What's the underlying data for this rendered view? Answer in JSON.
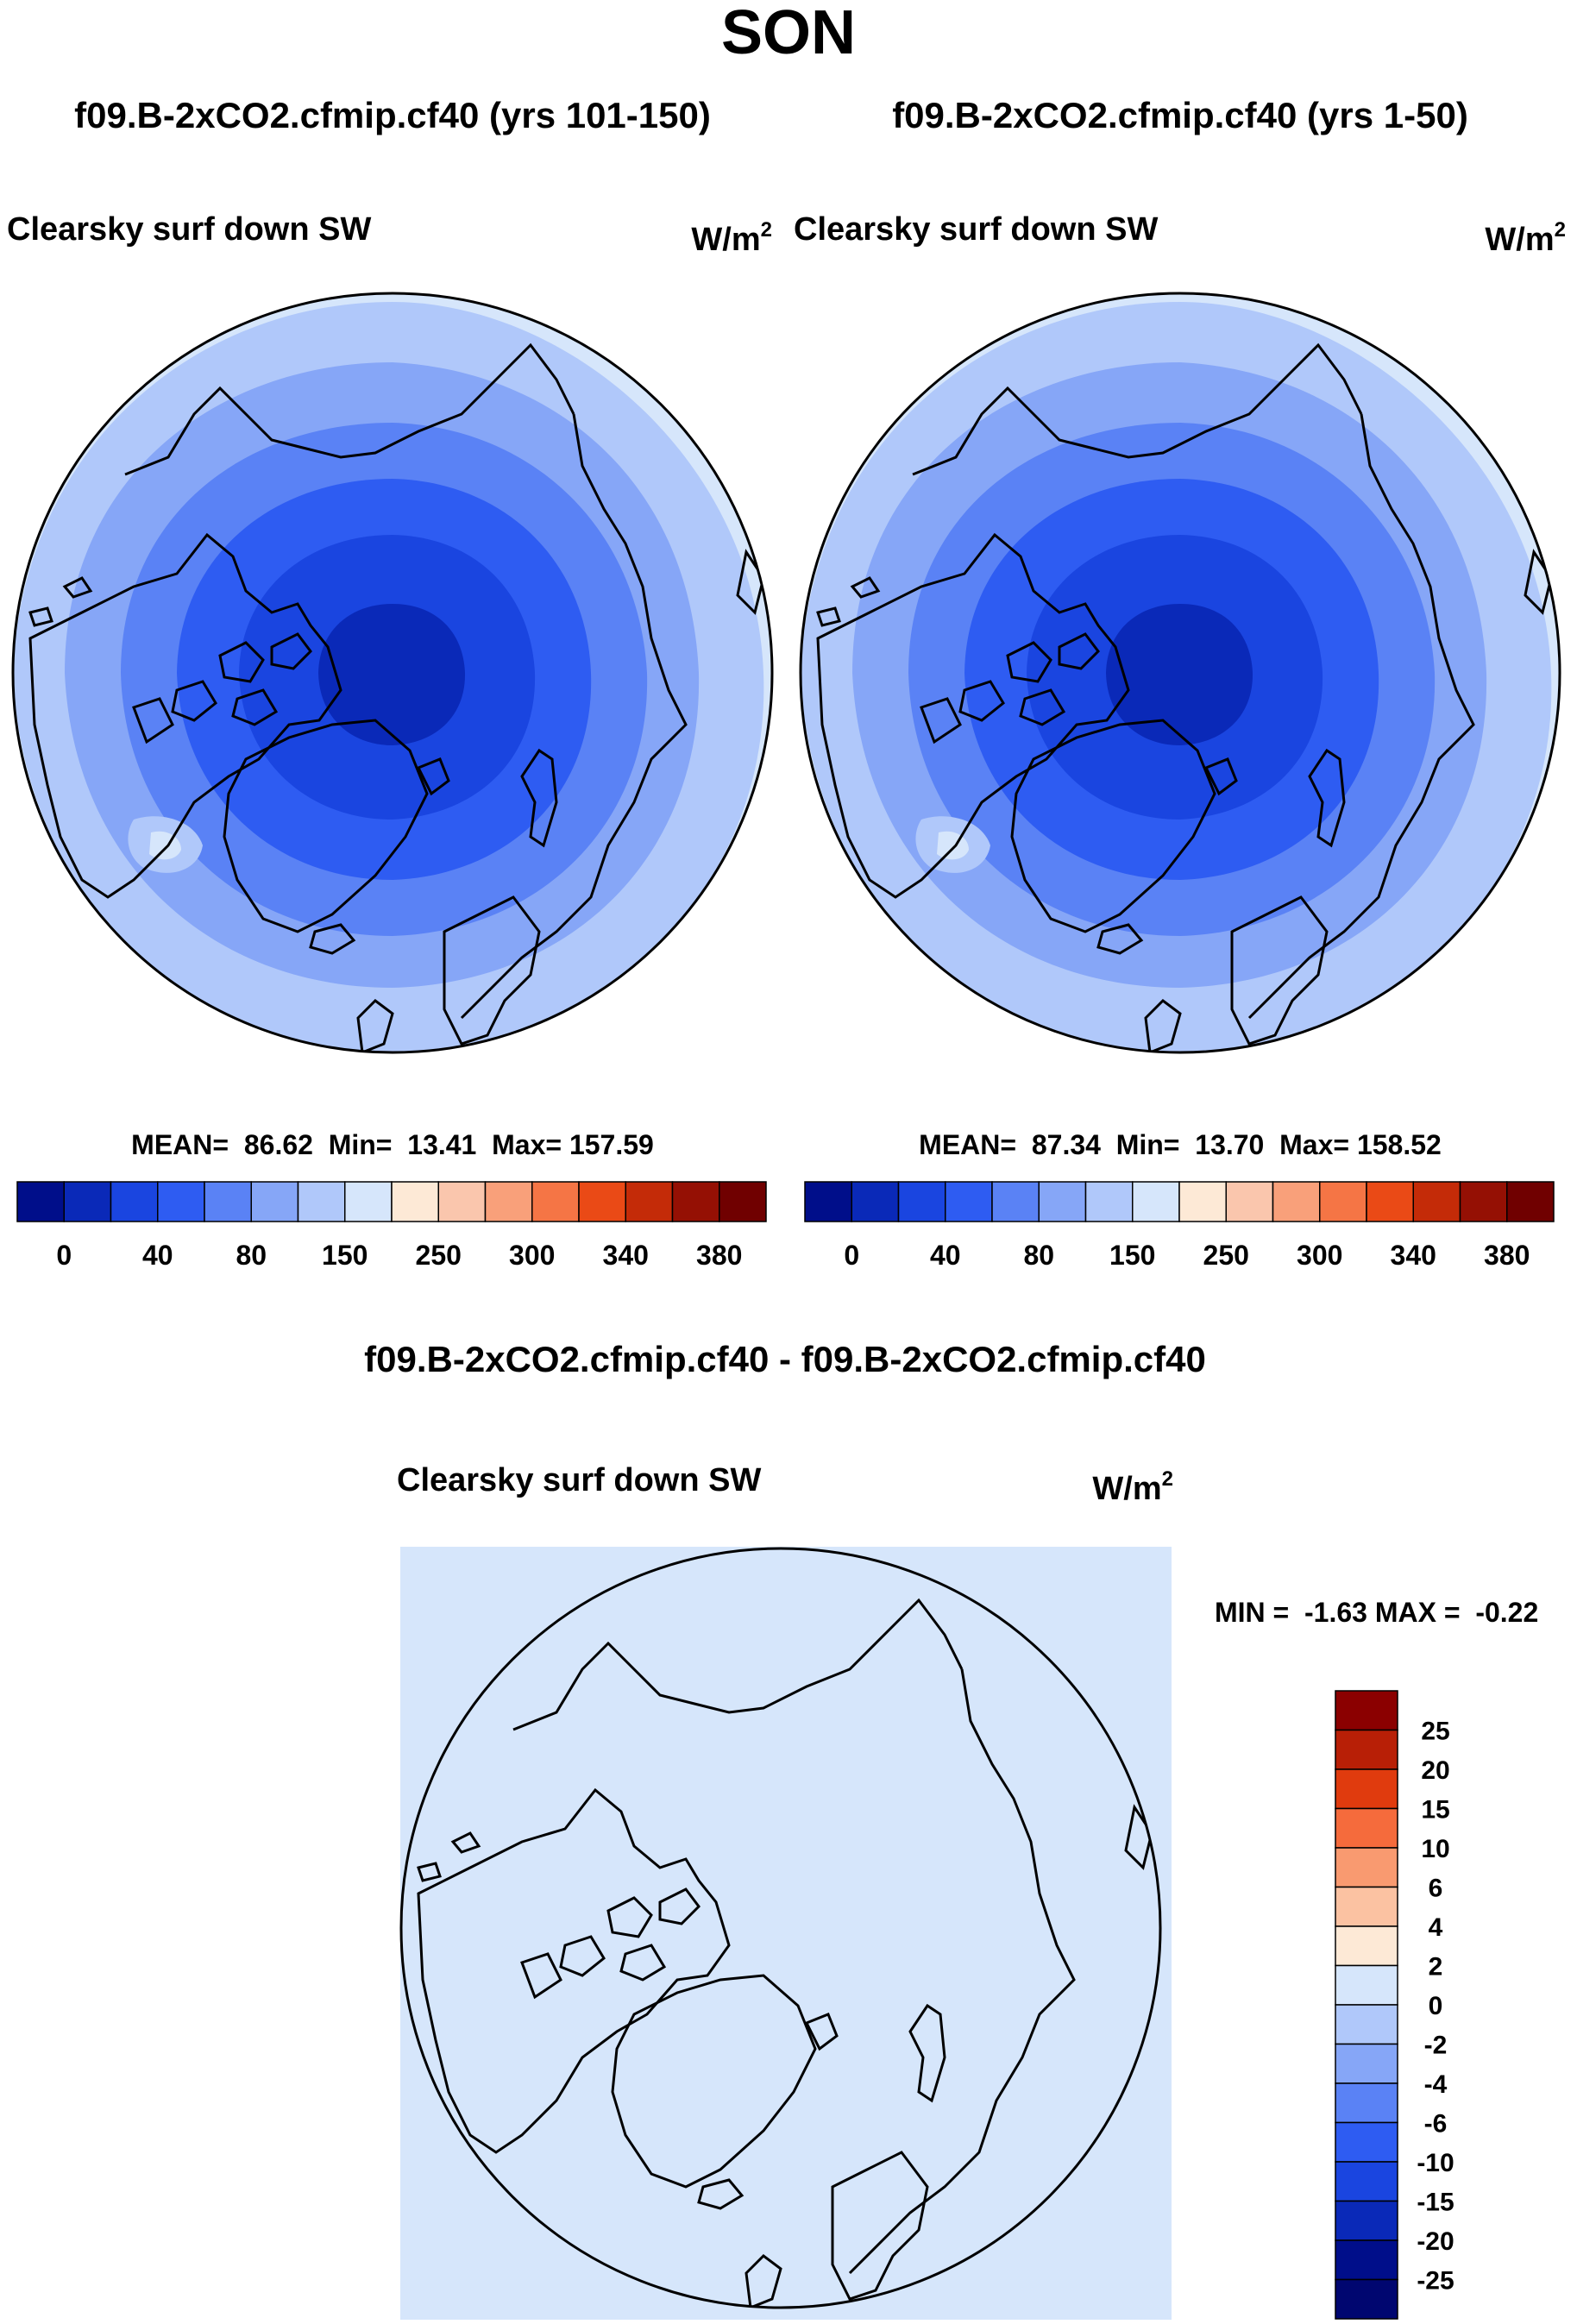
{
  "figure": {
    "title": "SON",
    "panels": [
      {
        "case_title": "f09.B-2xCO2.cfmip.cf40 (yrs 101-150)",
        "variable": "Clearsky surf down SW",
        "units_base": "W/m",
        "units_exp": "2",
        "stats": {
          "mean_label": "MEAN=",
          "mean": "86.62",
          "min_label": "Min=",
          "min": "13.41",
          "max_label": "Max=",
          "max": "157.59"
        }
      },
      {
        "case_title": "f09.B-2xCO2.cfmip.cf40 (yrs 1-50)",
        "variable": "Clearsky surf down SW",
        "units_base": "W/m",
        "units_exp": "2",
        "stats": {
          "mean_label": "MEAN=",
          "mean": "87.34",
          "min_label": "Min=",
          "min": "13.70",
          "max_label": "Max=",
          "max": "158.52"
        }
      }
    ],
    "diff_panel": {
      "case_title": "f09.B-2xCO2.cfmip.cf40 - f09.B-2xCO2.cfmip.cf40",
      "variable": "Clearsky surf down SW",
      "units_base": "W/m",
      "units_exp": "2",
      "minmax": "MIN =  -1.63 MAX =  -0.22"
    }
  },
  "chart_data": [
    {
      "type": "heatmap",
      "projection": "north-polar-stereographic",
      "colorbar_orientation": "horizontal",
      "colorbar_labels": [
        "0",
        "40",
        "80",
        "150",
        "250",
        "300",
        "340",
        "380"
      ],
      "colorbar_colors": [
        "#000e8a",
        "#0a29b8",
        "#1a45e0",
        "#2e5cf2",
        "#5a82f5",
        "#86a6f7",
        "#b0c8fa",
        "#d6e6fb",
        "#fde9d6",
        "#fac6ad",
        "#f9a07a",
        "#f57545",
        "#ea4a16",
        "#c42b08",
        "#951004",
        "#700000"
      ],
      "levels_shown": [
        "#000e8a",
        "#0a29b8",
        "#1a45e0",
        "#2e5cf2",
        "#5a82f5",
        "#86a6f7",
        "#b0c8fa",
        "#d6e6fb"
      ]
    },
    {
      "type": "heatmap",
      "projection": "north-polar-stereographic",
      "colorbar_orientation": "horizontal",
      "colorbar_labels": [
        "0",
        "40",
        "80",
        "150",
        "250",
        "300",
        "340",
        "380"
      ],
      "colorbar_colors": [
        "#000e8a",
        "#0a29b8",
        "#1a45e0",
        "#2e5cf2",
        "#5a82f5",
        "#86a6f7",
        "#b0c8fa",
        "#d6e6fb",
        "#fde9d6",
        "#fac6ad",
        "#f9a07a",
        "#f57545",
        "#ea4a16",
        "#c42b08",
        "#951004",
        "#700000"
      ],
      "levels_shown": [
        "#000e8a",
        "#0a29b8",
        "#1a45e0",
        "#2e5cf2",
        "#5a82f5",
        "#86a6f7",
        "#b0c8fa",
        "#d6e6fb"
      ]
    },
    {
      "type": "heatmap",
      "projection": "north-polar-stereographic",
      "colorbar_orientation": "vertical",
      "colorbar_labels": [
        "25",
        "20",
        "15",
        "10",
        "6",
        "4",
        "2",
        "0",
        "-2",
        "-4",
        "-6",
        "-10",
        "-15",
        "-20",
        "-25"
      ],
      "colorbar_colors": [
        "#8b0000",
        "#b81f06",
        "#e03b0e",
        "#f56b3c",
        "#f99a70",
        "#fbc2a2",
        "#fde9d6",
        "#d6e6fb",
        "#b0c8fa",
        "#86a6f7",
        "#5a82f5",
        "#2e5cf2",
        "#1a45e0",
        "#0a29b8",
        "#000e8a",
        "#000670"
      ],
      "field_color": "#d6e6fb"
    }
  ]
}
